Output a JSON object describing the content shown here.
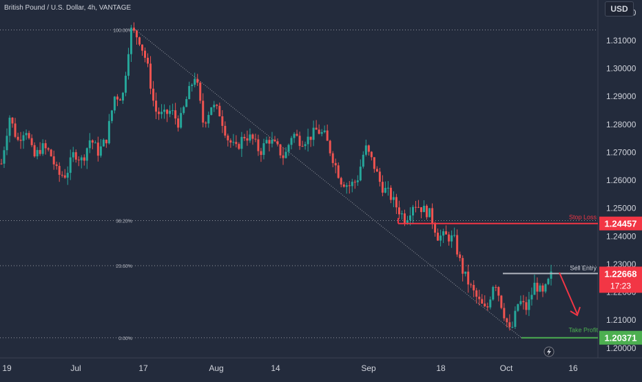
{
  "header": {
    "symbol_title": "British Pound / U.S. Dollar, 4h, VANTAGE",
    "currency": "USD"
  },
  "chart_data": {
    "type": "candlestick",
    "title": "British Pound / U.S. Dollar, 4h, VANTAGE",
    "ylim": [
      1.1965,
      1.3245
    ],
    "y_ticks": [
      "1.32000",
      "1.31000",
      "1.30000",
      "1.29000",
      "1.28000",
      "1.27000",
      "1.26000",
      "1.25000",
      "1.24000",
      "1.23000",
      "1.22000",
      "1.21000",
      "1.20000"
    ],
    "x_ticks": [
      "19",
      "Jul",
      "17",
      "Aug",
      "14",
      "Sep",
      "18",
      "Oct",
      "16"
    ],
    "fib_levels": [
      {
        "label": "100.00%",
        "value": 1.3138
      },
      {
        "label": "38.20%",
        "value": 1.2456
      },
      {
        "label": "23.60%",
        "value": 1.2295
      },
      {
        "label": "0.00%",
        "value": 1.2037
      }
    ],
    "stop_loss": {
      "label": "Stop Loss",
      "price": "1.24457",
      "value": 1.24457
    },
    "sell_entry": {
      "label": "Sell Entry",
      "price": "1.22668",
      "value": 1.22668,
      "countdown": "17:23"
    },
    "take_profit": {
      "label": "Take Profit",
      "price": "1.20371",
      "value": 1.20371
    },
    "trend_line": {
      "from": 1.3138,
      "to": 1.2037
    },
    "price_path": [
      1.266,
      1.283,
      1.274,
      1.279,
      1.268,
      1.272,
      1.27,
      1.262,
      1.262,
      1.27,
      1.267,
      1.275,
      1.27,
      1.275,
      1.29,
      1.29,
      1.3138,
      1.311,
      1.302,
      1.285,
      1.283,
      1.285,
      1.28,
      1.29,
      1.298,
      1.28,
      1.287,
      1.284,
      1.275,
      1.271,
      1.276,
      1.275,
      1.27,
      1.275,
      1.272,
      1.268,
      1.277,
      1.274,
      1.275,
      1.278,
      1.276,
      1.268,
      1.26,
      1.258,
      1.26,
      1.272,
      1.266,
      1.258,
      1.255,
      1.25,
      1.246,
      1.252,
      1.25,
      1.248,
      1.24,
      1.24,
      1.239,
      1.228,
      1.222,
      1.217,
      1.213,
      1.225,
      1.214,
      1.205,
      1.217,
      1.214,
      1.223,
      1.219,
      1.226
    ],
    "colors": {
      "up": "#26a69a",
      "down": "#ef5350",
      "bg": "#232b3c",
      "stop": "#f23645",
      "entry": "#b2b5be",
      "profit": "#4caf50"
    }
  }
}
